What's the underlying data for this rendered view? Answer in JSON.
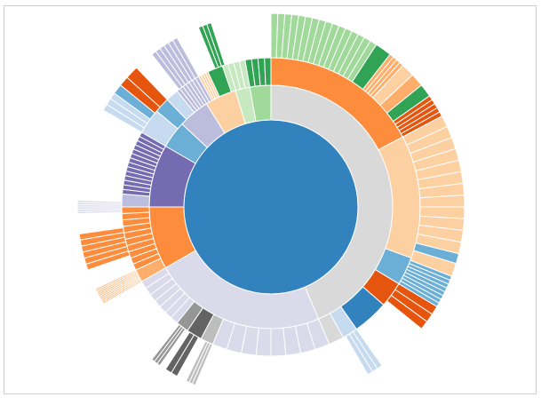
{
  "chart_data": {
    "type": "sunburst",
    "title": "",
    "legend": "none",
    "colors": {
      "center": "#3182bd",
      "gray": "#d9d9d9",
      "orange": "#fd8d3c",
      "peach": "#fdd0a2",
      "lightgreen": "#a1d99b",
      "green": "#31a354",
      "palegreen": "#c7e9c0",
      "lavender": "#dadaeb",
      "purple": "#756bb1",
      "lilac": "#bcbddc",
      "blue": "#6baed6",
      "darkblue": "#3182bd",
      "lightblue": "#c6dbef",
      "darkorange": "#e6550d",
      "lightorange": "#fdae6b",
      "darkgray": "#636363",
      "midgray": "#969696",
      "silver": "#bdbdbd"
    },
    "rings": [
      [
        {
          "start": 0,
          "end": 360,
          "color": "center"
        }
      ],
      [
        {
          "start": 0,
          "end": 157,
          "color": "gray"
        },
        {
          "start": 157,
          "end": 240,
          "color": "lavender"
        },
        {
          "start": 240,
          "end": 270,
          "color": "orange"
        },
        {
          "start": 270,
          "end": 300,
          "color": "purple"
        },
        {
          "start": 300,
          "end": 313,
          "color": "blue"
        },
        {
          "start": 313,
          "end": 328,
          "color": "lilac"
        },
        {
          "start": 328,
          "end": 343,
          "color": "peach"
        },
        {
          "start": 343,
          "end": 350,
          "color": "palegreen"
        },
        {
          "start": 350,
          "end": 360,
          "color": "lightgreen"
        }
      ],
      [
        {
          "start": 0,
          "end": 62,
          "color": "orange"
        },
        {
          "start": 62,
          "end": 110,
          "color": "peach"
        },
        {
          "start": 110,
          "end": 121,
          "color": "blue"
        },
        {
          "start": 121,
          "end": 131,
          "color": "darkorange"
        },
        {
          "start": 131,
          "end": 145,
          "color": "darkblue"
        },
        {
          "start": 145,
          "end": 151,
          "color": "lightblue"
        },
        {
          "start": 151,
          "end": 157,
          "color": "gray"
        },
        {
          "start": 157,
          "end": 203,
          "color": "lavender",
          "segments": 8
        },
        {
          "start": 203,
          "end": 208,
          "color": "silver"
        },
        {
          "start": 208,
          "end": 214,
          "color": "darkgray"
        },
        {
          "start": 214,
          "end": 219,
          "color": "midgray"
        },
        {
          "start": 219,
          "end": 240,
          "color": "lavender",
          "segments": 7
        },
        {
          "start": 240,
          "end": 245,
          "color": "lightorange"
        },
        {
          "start": 245,
          "end": 270,
          "color": "orange",
          "segments": 10
        },
        {
          "start": 270,
          "end": 275,
          "color": "lilac"
        },
        {
          "start": 275,
          "end": 300,
          "color": "purple",
          "segments": 14
        },
        {
          "start": 300,
          "end": 310,
          "color": "lightblue"
        },
        {
          "start": 310,
          "end": 316,
          "color": "blue"
        },
        {
          "start": 316,
          "end": 321,
          "color": "lightblue"
        },
        {
          "start": 321,
          "end": 331,
          "color": "lilac",
          "segments": 7
        },
        {
          "start": 331,
          "end": 335,
          "color": "peach",
          "segments": 4
        },
        {
          "start": 335,
          "end": 341,
          "color": "green"
        },
        {
          "start": 341,
          "end": 350,
          "color": "palegreen",
          "segments": 4
        },
        {
          "start": 350,
          "end": 360,
          "color": "green",
          "segments": 4
        }
      ],
      [
        {
          "start": 0,
          "end": 33,
          "color": "lightgreen",
          "segments": 16
        },
        {
          "start": 33,
          "end": 38,
          "color": "green"
        },
        {
          "start": 38,
          "end": 43,
          "color": "lightorange",
          "segments": 4
        },
        {
          "start": 43,
          "end": 47,
          "color": "peach"
        },
        {
          "start": 47,
          "end": 51,
          "color": "lightorange"
        },
        {
          "start": 51,
          "end": 55,
          "color": "green"
        },
        {
          "start": 55,
          "end": 62,
          "color": "darkorange",
          "segments": 5
        },
        {
          "start": 62,
          "end": 104,
          "color": "peach",
          "segments": 12
        },
        {
          "start": 104,
          "end": 107,
          "color": "blue"
        },
        {
          "start": 107,
          "end": 111,
          "color": "peach"
        },
        {
          "start": 111,
          "end": 121,
          "color": "blue",
          "segments": 8
        },
        {
          "start": 121,
          "end": 129,
          "color": "darkorange",
          "segments": 3
        },
        {
          "start": 145,
          "end": 150,
          "color": "lightblue",
          "segments": 3
        },
        {
          "start": 203,
          "end": 206,
          "color": "silver",
          "segments": 3
        },
        {
          "start": 209,
          "end": 213,
          "color": "darkgray",
          "segments": 2
        },
        {
          "start": 215,
          "end": 218,
          "color": "midgray",
          "segments": 3
        },
        {
          "start": 240,
          "end": 245,
          "color": "lightorange",
          "segments": 10
        },
        {
          "start": 251,
          "end": 262,
          "color": "orange",
          "segments": 6
        },
        {
          "start": 268,
          "end": 272,
          "color": "lavender",
          "segments": 6
        },
        {
          "start": 300,
          "end": 306,
          "color": "lightblue",
          "segments": 3
        },
        {
          "start": 306,
          "end": 309,
          "color": "blue"
        },
        {
          "start": 309,
          "end": 312,
          "color": "darkorange"
        },
        {
          "start": 312,
          "end": 316,
          "color": "darkorange"
        },
        {
          "start": 322,
          "end": 331,
          "color": "lilac",
          "segments": 6
        },
        {
          "start": 338,
          "end": 342,
          "color": "green",
          "segments": 3
        }
      ]
    ]
  }
}
